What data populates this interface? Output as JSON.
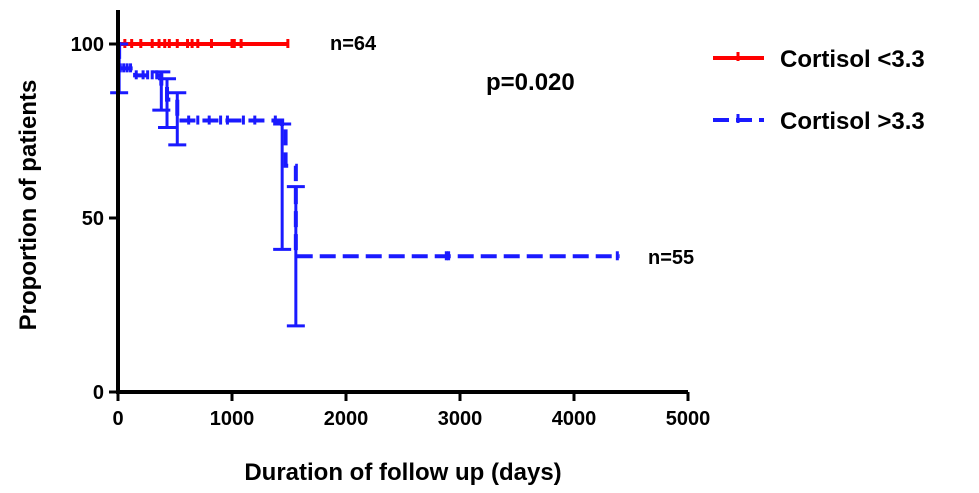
{
  "chart_data": {
    "type": "line",
    "subtype": "kaplan-meier",
    "xlabel": "Duration of follow up (days)",
    "ylabel": "Proportion of patients",
    "xlim": [
      0,
      5000
    ],
    "ylim": [
      0,
      100
    ],
    "x_ticks": [
      0,
      1000,
      2000,
      3000,
      4000,
      5000
    ],
    "y_ticks": [
      0,
      50,
      100
    ],
    "legend_position": "right",
    "annotations": {
      "pvalue": "p=0.020",
      "n_cortisol_low": "n=64",
      "n_cortisol_high": "n=55"
    },
    "series": [
      {
        "name": "Cortisol <3.3",
        "color": "#ff0000",
        "style": "solid",
        "steps": [
          [
            0,
            100
          ],
          [
            1500,
            100
          ]
        ],
        "censor_x": [
          60,
          120,
          200,
          300,
          360,
          410,
          450,
          520,
          610,
          650,
          700,
          820,
          1000,
          1020,
          1080,
          1490
        ],
        "error_bars": []
      },
      {
        "name": "Cortisol >3.3",
        "color": "#1a1aff",
        "style": "dashed",
        "steps": [
          [
            0,
            100
          ],
          [
            10,
            93
          ],
          [
            150,
            91
          ],
          [
            380,
            88
          ],
          [
            430,
            84
          ],
          [
            520,
            78
          ],
          [
            1440,
            77
          ],
          [
            1470,
            65
          ],
          [
            1560,
            39
          ],
          [
            4400,
            39
          ]
        ],
        "censor_x": [
          20,
          50,
          80,
          110,
          160,
          220,
          260,
          300,
          340,
          620,
          700,
          800,
          900,
          960,
          1100,
          1200,
          1380,
          2880,
          2900,
          4380
        ],
        "error_bars": [
          {
            "x": 10,
            "low": 86,
            "high": 100
          },
          {
            "x": 380,
            "low": 81,
            "high": 92
          },
          {
            "x": 430,
            "low": 76,
            "high": 90
          },
          {
            "x": 520,
            "low": 71,
            "high": 86
          },
          {
            "x": 1440,
            "low": 41,
            "high": 77
          },
          {
            "x": 1560,
            "low": 19,
            "high": 59
          }
        ]
      }
    ]
  }
}
